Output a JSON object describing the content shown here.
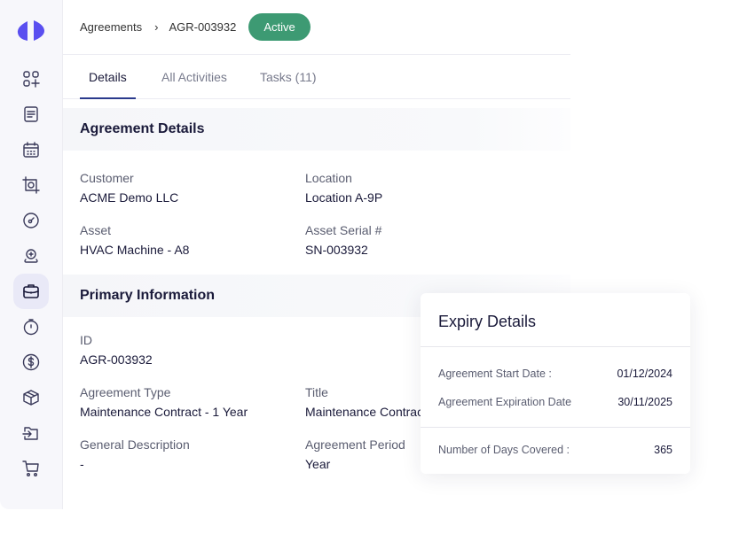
{
  "brand": {
    "accent": "#5a4ff0",
    "status_color": "#3d9a73"
  },
  "sidebar": {
    "items": [
      {
        "icon": "dashboard-add-icon"
      },
      {
        "icon": "document-icon"
      },
      {
        "icon": "calendar-icon"
      },
      {
        "icon": "scan-icon"
      },
      {
        "icon": "gauge-icon"
      },
      {
        "icon": "location-add-icon"
      },
      {
        "icon": "briefcase-icon",
        "active": true
      },
      {
        "icon": "timer-icon"
      },
      {
        "icon": "dollar-icon"
      },
      {
        "icon": "box-icon"
      },
      {
        "icon": "folder-import-icon"
      },
      {
        "icon": "cart-icon"
      }
    ]
  },
  "breadcrumb": {
    "parent": "Agreements",
    "current": "AGR-003932",
    "status": "Active"
  },
  "tabs": [
    {
      "label": "Details"
    },
    {
      "label": "All Activities"
    },
    {
      "label": "Tasks (11)"
    }
  ],
  "agreement_details": {
    "title": "Agreement Details",
    "fields": [
      {
        "label": "Customer",
        "value": "ACME Demo LLC"
      },
      {
        "label": "Location",
        "value": "Location A-9P"
      },
      {
        "label": "Asset",
        "value": "HVAC Machine - A8"
      },
      {
        "label": "Asset Serial #",
        "value": "SN-003932"
      }
    ]
  },
  "primary_information": {
    "title": "Primary Information",
    "fields": [
      {
        "label": "ID",
        "value": "AGR-003932"
      },
      {
        "label": "Agreement Type",
        "value": "Maintenance Contract - 1 Year"
      },
      {
        "label": "Title",
        "value": "Maintenance Contract"
      },
      {
        "label": "General Description",
        "value": "-"
      },
      {
        "label": "Agreement Period",
        "value": "Year"
      }
    ]
  },
  "expiry": {
    "title": "Expiry Details",
    "rows": [
      {
        "label": "Agreement Start Date :",
        "value": "01/12/2024"
      },
      {
        "label": "Agreement Expiration Date",
        "value": "30/11/2025"
      },
      {
        "label": "Number of Days Covered :",
        "value": "365"
      }
    ]
  }
}
